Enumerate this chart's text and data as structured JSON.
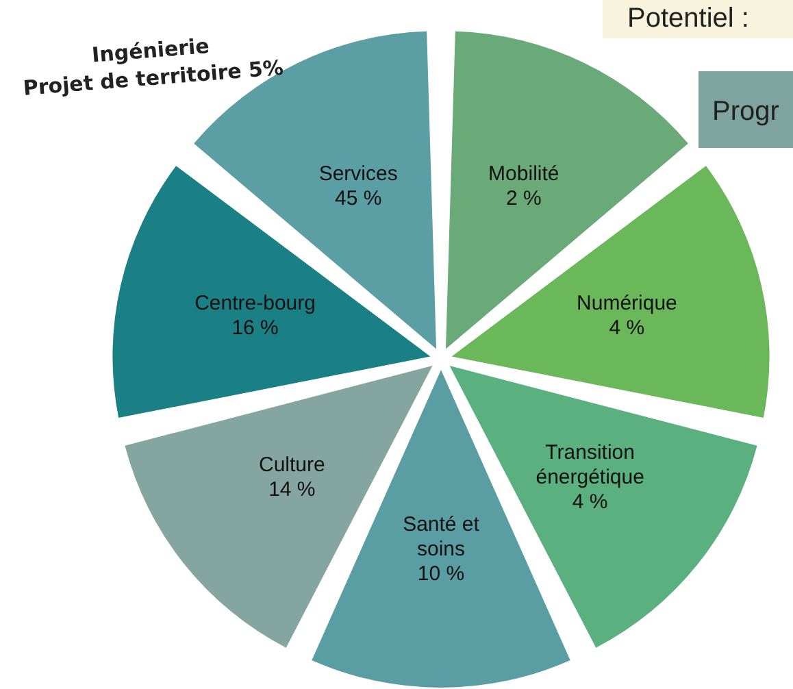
{
  "chart_data": {
    "type": "other",
    "categories": [
      "Mobilité",
      "Numérique",
      "Transition énergétique",
      "Santé et soins",
      "Culture",
      "Centre-bourg",
      "Services"
    ],
    "values": [
      2,
      4,
      4,
      10,
      14,
      16,
      45
    ],
    "value_labels": [
      "2 %",
      "4 %",
      "4 %",
      "10 %",
      "14 %",
      "16 %",
      "45 %"
    ],
    "colors": [
      "#6aaa78",
      "#6ab85a",
      "#5bb07f",
      "#5a9ea3",
      "#85a5a0",
      "#1b7f86",
      "#5b9ea4"
    ],
    "annotations": [
      "Ingénierie",
      "Projet de territoire 5%",
      "Potentiel :",
      "Progr"
    ]
  }
}
